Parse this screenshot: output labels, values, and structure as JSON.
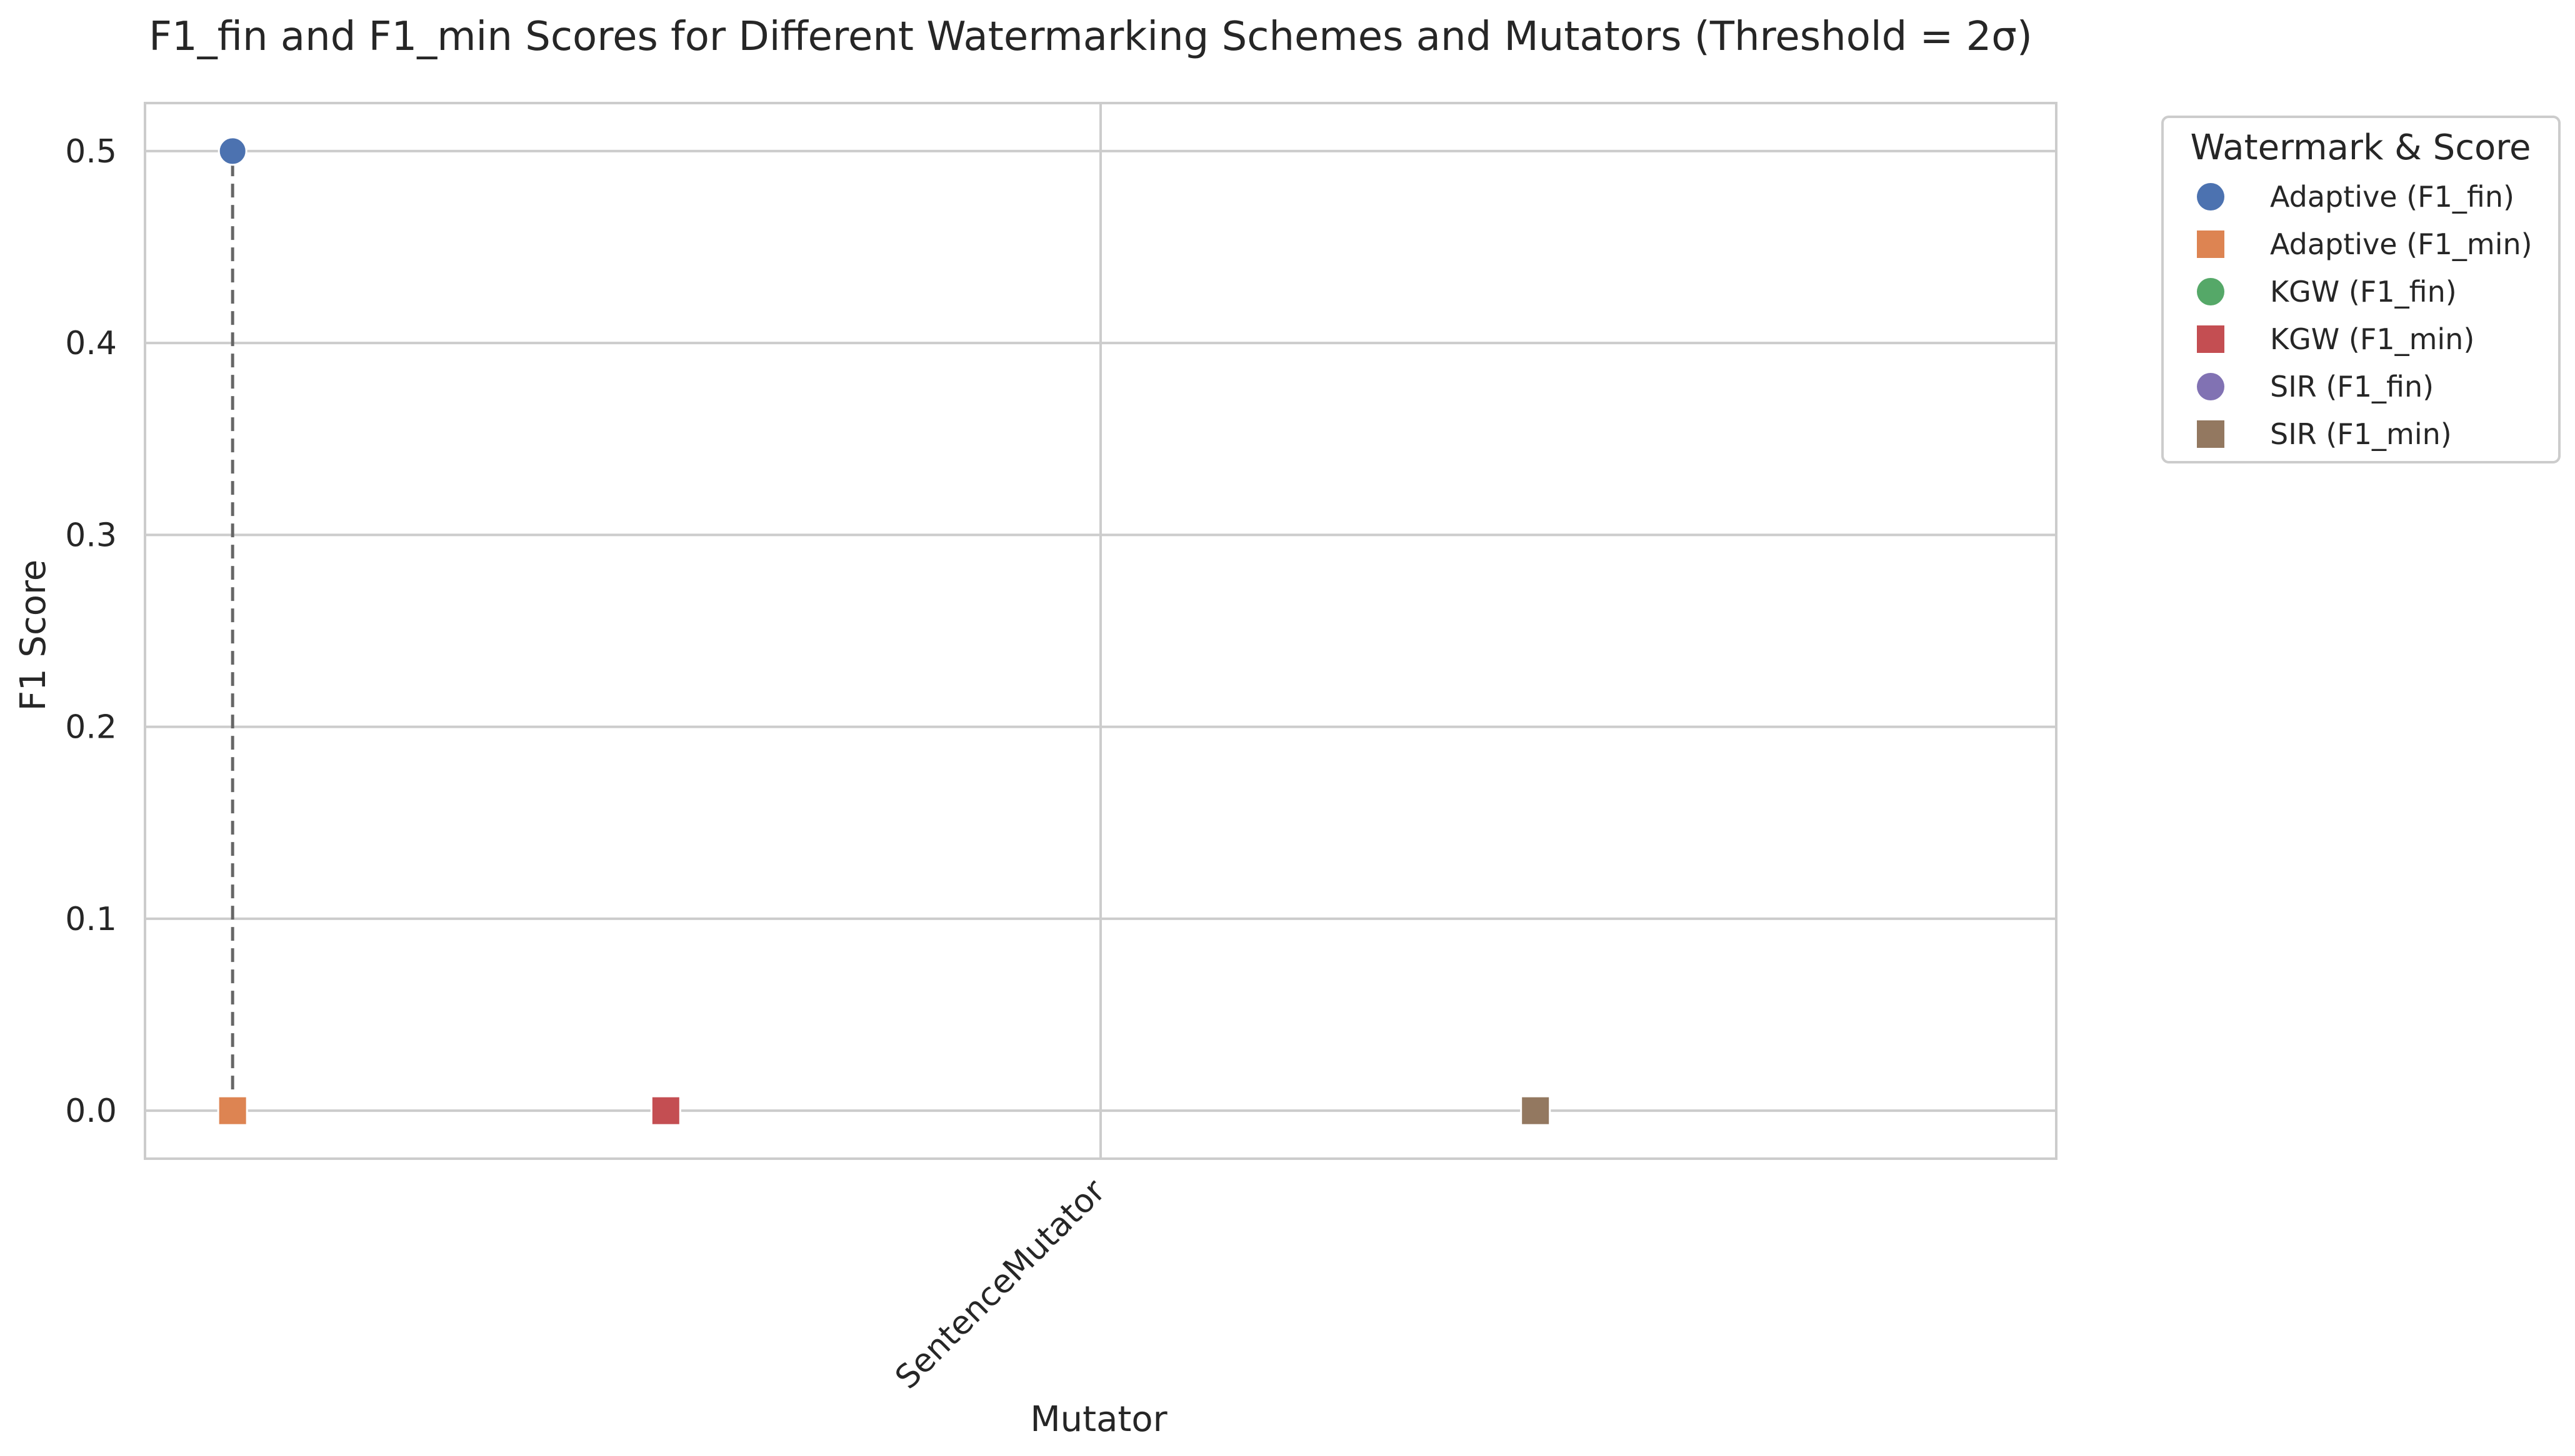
{
  "chart_data": {
    "type": "scatter",
    "title": "F1_fin and F1_min Scores for Different Watermarking Schemes and Mutators (Threshold = 2σ)",
    "xlabel": "Mutator",
    "ylabel": "F1 Score",
    "categories": [
      "SentenceMutator"
    ],
    "x_range": [
      -0.6,
      0.6
    ],
    "ylim": [
      -0.025,
      0.525
    ],
    "yticks": [
      "0.0",
      "0.1",
      "0.2",
      "0.3",
      "0.4",
      "0.5"
    ],
    "ytick_values": [
      0.0,
      0.1,
      0.2,
      0.3,
      0.4,
      0.5
    ],
    "grid": true,
    "legend": {
      "title": "Watermark & Score",
      "placement": "outside right, top"
    },
    "series": [
      {
        "name": "Adaptive (F1_fin)",
        "marker": "circle",
        "color": "#4c72b0",
        "points": [
          {
            "x": -0.545,
            "y": 0.5
          }
        ]
      },
      {
        "name": "Adaptive (F1_min)",
        "marker": "square",
        "color": "#dd8452",
        "points": [
          {
            "x": -0.545,
            "y": 0.0
          }
        ]
      },
      {
        "name": "KGW (F1_fin)",
        "marker": "circle",
        "color": "#55a868",
        "points": []
      },
      {
        "name": "KGW (F1_min)",
        "marker": "square",
        "color": "#c44e52",
        "points": [
          {
            "x": -0.273,
            "y": 0.0
          }
        ]
      },
      {
        "name": "SIR (F1_fin)",
        "marker": "circle",
        "color": "#8172b3",
        "points": []
      },
      {
        "name": "SIR (F1_min)",
        "marker": "square",
        "color": "#937860",
        "points": [
          {
            "x": 0.273,
            "y": 0.0
          }
        ]
      }
    ],
    "connectors": [
      {
        "x": -0.545,
        "y_from": 0.0,
        "y_to": 0.5,
        "style": "dashed",
        "color": "#666666"
      }
    ]
  }
}
